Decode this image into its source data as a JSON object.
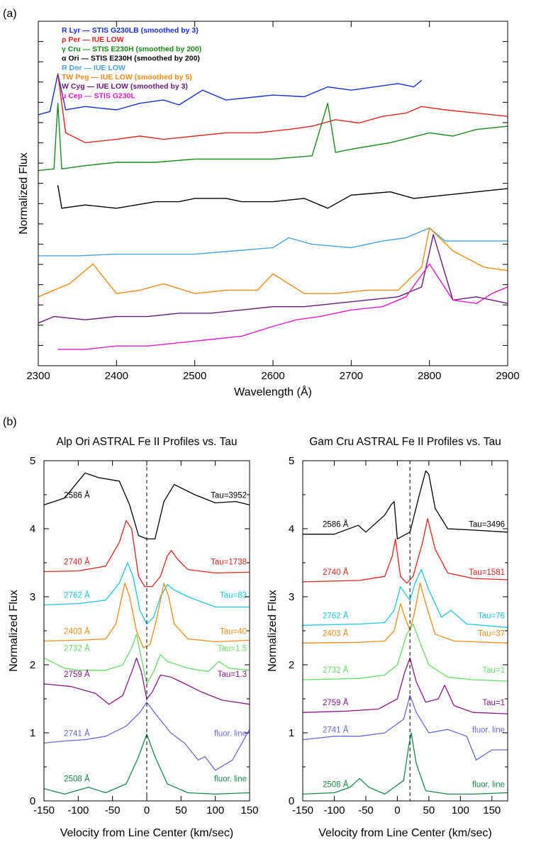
{
  "panel_labels": {
    "a": "(a)",
    "b": "(b)"
  },
  "chart_data": [
    {
      "type": "line",
      "xlabel": "Wavelength (Å)",
      "ylabel": "Normalized Flux",
      "xlim": [
        2300,
        2900
      ],
      "xticks": [
        2300,
        2400,
        2500,
        2600,
        2700,
        2800,
        2900
      ],
      "y_tick_labels": false,
      "legend_position": "top-left",
      "series": [
        {
          "name": "R Lyr",
          "legend_text": "R Lyr — STIS G230LB (smoothed by 3)",
          "color": "#1730d8",
          "x": [
            2300,
            2315,
            2325,
            2335,
            2360,
            2400,
            2430,
            2460,
            2480,
            2510,
            2540,
            2580,
            2600,
            2640,
            2670,
            2700,
            2730,
            2760,
            2780,
            2790
          ],
          "y": [
            0.715,
            0.725,
            0.84,
            0.73,
            0.74,
            0.73,
            0.75,
            0.76,
            0.745,
            0.79,
            0.76,
            0.77,
            0.775,
            0.77,
            0.8,
            0.79,
            0.8,
            0.81,
            0.8,
            0.82
          ]
        },
        {
          "name": "ρ Per",
          "legend_text": "ρ Per — IUE LOW",
          "color": "#e0261d",
          "x": [
            2325,
            2335,
            2360,
            2400,
            2430,
            2460,
            2500,
            2540,
            2580,
            2620,
            2650,
            2680,
            2710,
            2740,
            2770,
            2790,
            2820,
            2860,
            2900
          ],
          "y": [
            0.84,
            0.66,
            0.63,
            0.64,
            0.65,
            0.64,
            0.65,
            0.66,
            0.66,
            0.67,
            0.68,
            0.7,
            0.69,
            0.71,
            0.72,
            0.74,
            0.73,
            0.72,
            0.71
          ]
        },
        {
          "name": "γ Cru",
          "legend_text": "γ Cru — STIS E230H (smoothed by 200)",
          "color": "#1a8a1a",
          "x": [
            2300,
            2320,
            2325,
            2330,
            2360,
            2400,
            2450,
            2500,
            2550,
            2600,
            2650,
            2670,
            2680,
            2700,
            2750,
            2800,
            2830,
            2860,
            2900
          ],
          "y": [
            0.545,
            0.55,
            0.75,
            0.55,
            0.56,
            0.57,
            0.57,
            0.58,
            0.58,
            0.58,
            0.59,
            0.75,
            0.6,
            0.61,
            0.63,
            0.66,
            0.65,
            0.67,
            0.68
          ]
        },
        {
          "name": "α Ori",
          "legend_text": "α Ori — STIS E230H (smoothed by 200)",
          "color": "#000000",
          "x": [
            2325,
            2330,
            2360,
            2400,
            2450,
            2480,
            2500,
            2540,
            2560,
            2600,
            2640,
            2670,
            2700,
            2750,
            2780,
            2820,
            2860,
            2900
          ],
          "y": [
            0.5,
            0.43,
            0.44,
            0.43,
            0.45,
            0.45,
            0.46,
            0.46,
            0.45,
            0.45,
            0.46,
            0.43,
            0.47,
            0.48,
            0.46,
            0.47,
            0.48,
            0.49
          ]
        },
        {
          "name": "R Dor",
          "legend_text": "R Dor — IUE LOW",
          "color": "#4aa3e0",
          "x": [
            2300,
            2350,
            2400,
            2450,
            2500,
            2550,
            2600,
            2620,
            2650,
            2700,
            2740,
            2770,
            2800,
            2820,
            2860,
            2900
          ],
          "y": [
            0.285,
            0.285,
            0.29,
            0.29,
            0.29,
            0.3,
            0.31,
            0.34,
            0.32,
            0.31,
            0.33,
            0.34,
            0.37,
            0.33,
            0.33,
            0.33
          ]
        },
        {
          "name": "TW Peg",
          "legend_text": "TW Peg — IUE LOW (smoothed by 5)",
          "color": "#f08c1a",
          "x": [
            2300,
            2340,
            2370,
            2400,
            2430,
            2460,
            2500,
            2540,
            2580,
            2600,
            2640,
            2680,
            2720,
            2760,
            2790,
            2800,
            2830,
            2870,
            2900
          ],
          "y": [
            0.16,
            0.2,
            0.26,
            0.17,
            0.18,
            0.2,
            0.17,
            0.18,
            0.18,
            0.23,
            0.17,
            0.17,
            0.18,
            0.18,
            0.25,
            0.37,
            0.3,
            0.25,
            0.24
          ]
        },
        {
          "name": "W Cyg",
          "legend_text": "W Cyg — IUE LOW (smoothed by 3)",
          "color": "#6a1a7a",
          "x": [
            2300,
            2320,
            2360,
            2400,
            2440,
            2480,
            2520,
            2560,
            2600,
            2640,
            2680,
            2720,
            2760,
            2790,
            2805,
            2830,
            2860,
            2900
          ],
          "y": [
            0.08,
            0.1,
            0.09,
            0.1,
            0.1,
            0.11,
            0.11,
            0.12,
            0.13,
            0.13,
            0.14,
            0.15,
            0.16,
            0.19,
            0.35,
            0.15,
            0.16,
            0.14
          ]
        },
        {
          "name": "μ Cep",
          "legend_text": "μ Cep — STIS G230L",
          "color": "#e21bd0",
          "x": [
            2325,
            2360,
            2400,
            2440,
            2480,
            2520,
            2560,
            2600,
            2630,
            2660,
            2700,
            2740,
            2770,
            2800,
            2830,
            2860,
            2880,
            2900
          ],
          "y": [
            0.0,
            0.0,
            0.01,
            0.01,
            0.02,
            0.03,
            0.04,
            0.07,
            0.09,
            0.1,
            0.12,
            0.13,
            0.16,
            0.26,
            0.15,
            0.14,
            0.17,
            0.19
          ]
        }
      ]
    },
    {
      "type": "line",
      "title": "Alp Ori ASTRAL Fe II Profiles vs. Tau",
      "xlabel": "Velocity from Line Center (km/sec)",
      "ylabel": "Normalized Flux",
      "xlim": [
        -150,
        150
      ],
      "ylim": [
        0,
        5
      ],
      "xticks": [
        -150,
        -100,
        -50,
        0,
        50,
        100,
        150
      ],
      "yticks": [
        0,
        1,
        2,
        3,
        4,
        5
      ],
      "vline": 0,
      "series": [
        {
          "label": "2586 Å",
          "tau_label": "Tau=3952",
          "color": "#000000",
          "x": [
            -150,
            -120,
            -90,
            -70,
            -40,
            -25,
            -12,
            0,
            12,
            25,
            40,
            70,
            100,
            130,
            150
          ],
          "y": [
            4.35,
            4.45,
            4.82,
            4.75,
            4.7,
            4.35,
            3.9,
            3.85,
            3.85,
            4.4,
            4.65,
            4.5,
            4.38,
            4.4,
            4.35
          ]
        },
        {
          "label": "2740 Å",
          "tau_label": "Tau=1738",
          "color": "#e0261d",
          "x": [
            -150,
            -100,
            -60,
            -40,
            -30,
            -22,
            -12,
            -3,
            8,
            20,
            30,
            36,
            45,
            60,
            100,
            150
          ],
          "y": [
            3.37,
            3.38,
            3.45,
            3.8,
            4.12,
            4.0,
            3.3,
            3.15,
            3.15,
            3.3,
            3.6,
            3.68,
            3.55,
            3.4,
            3.35,
            3.36
          ]
        },
        {
          "label": "2762 Å",
          "tau_label": "Tau=83",
          "color": "#1ec8e6",
          "x": [
            -150,
            -100,
            -60,
            -40,
            -28,
            -20,
            -10,
            0,
            10,
            20,
            30,
            40,
            60,
            100,
            150
          ],
          "y": [
            2.88,
            2.9,
            2.95,
            3.2,
            3.5,
            3.3,
            2.8,
            2.6,
            2.7,
            3.0,
            3.18,
            3.1,
            3.0,
            2.85,
            2.85
          ]
        },
        {
          "label": "2403 Å",
          "tau_label": "Tau=40",
          "color": "#f08c1a",
          "x": [
            -150,
            -100,
            -60,
            -45,
            -32,
            -25,
            -15,
            -5,
            5,
            15,
            25,
            32,
            40,
            60,
            100,
            150
          ],
          "y": [
            2.35,
            2.36,
            2.38,
            2.6,
            3.2,
            3.0,
            2.5,
            2.25,
            2.3,
            2.7,
            3.2,
            3.0,
            2.6,
            2.38,
            2.34,
            2.36
          ]
        },
        {
          "label": "2732 Å",
          "tau_label": "Tau=1.5",
          "color": "#66e066",
          "x": [
            -150,
            -120,
            -100,
            -60,
            -35,
            -22,
            -15,
            -8,
            0,
            10,
            20,
            30,
            60,
            90,
            105,
            120,
            150
          ],
          "y": [
            2.1,
            1.95,
            1.92,
            1.92,
            2.0,
            2.25,
            2.45,
            2.1,
            1.72,
            1.9,
            2.15,
            2.05,
            1.95,
            1.9,
            2.05,
            1.95,
            1.92
          ]
        },
        {
          "label": "2759 Å",
          "tau_label": "Tau=1.3",
          "color": "#8a1a8a",
          "x": [
            -150,
            -110,
            -75,
            -55,
            -35,
            -20,
            -15,
            -8,
            0,
            8,
            20,
            35,
            50,
            80,
            110,
            150
          ],
          "y": [
            1.72,
            1.68,
            1.58,
            1.42,
            1.55,
            1.95,
            2.1,
            1.9,
            1.5,
            1.6,
            1.85,
            1.82,
            1.75,
            1.6,
            1.48,
            1.42
          ]
        },
        {
          "label": "2741 Å",
          "tau_label": "fluor. line",
          "color": "#6a6adc",
          "x": [
            -150,
            -120,
            -90,
            -60,
            -30,
            -10,
            0,
            15,
            35,
            55,
            75,
            85,
            100,
            125,
            150
          ],
          "y": [
            0.85,
            0.88,
            0.9,
            0.95,
            1.1,
            1.3,
            1.45,
            1.25,
            1.0,
            0.85,
            0.6,
            0.65,
            0.45,
            0.6,
            1.05
          ]
        },
        {
          "label": "2508 Å",
          "tau_label": "fluor. line",
          "color": "#1a8a4a",
          "x": [
            -150,
            -120,
            -85,
            -60,
            -30,
            -12,
            0,
            12,
            30,
            60,
            100,
            150
          ],
          "y": [
            0.18,
            0.1,
            0.2,
            0.12,
            0.25,
            0.65,
            0.98,
            0.65,
            0.25,
            0.12,
            0.1,
            0.12
          ]
        }
      ]
    },
    {
      "type": "line",
      "title": "Gam Cru ASTRAL Fe II Profiles vs. Tau",
      "xlabel": "Velocity from Line Center (km/sec)",
      "ylabel": "Normalized Flux",
      "xlim": [
        -150,
        175
      ],
      "ylim": [
        0,
        5
      ],
      "xticks": [
        -150,
        -100,
        -50,
        0,
        50,
        100,
        150
      ],
      "yticks": [
        0,
        1,
        2,
        3,
        4,
        5
      ],
      "vline": 20,
      "series": [
        {
          "label": "2586 Å",
          "tau_label": "Tau=3496",
          "color": "#000000",
          "x": [
            -150,
            -100,
            -62,
            -50,
            -20,
            -10,
            -5,
            0,
            10,
            20,
            35,
            45,
            50,
            60,
            80,
            120,
            175
          ],
          "y": [
            3.92,
            3.92,
            4.05,
            3.95,
            4.2,
            4.35,
            4.4,
            3.85,
            3.9,
            3.95,
            4.5,
            4.85,
            4.8,
            4.3,
            4.0,
            3.98,
            3.95
          ]
        },
        {
          "label": "2740 Å",
          "tau_label": "Tau=1581",
          "color": "#e0261d",
          "x": [
            -150,
            -60,
            -20,
            -8,
            -3,
            5,
            15,
            25,
            40,
            48,
            60,
            80,
            120,
            175
          ],
          "y": [
            3.22,
            3.24,
            3.3,
            3.6,
            3.85,
            3.3,
            3.2,
            3.3,
            3.8,
            4.15,
            3.7,
            3.35,
            3.27,
            3.25
          ]
        },
        {
          "label": "2762 Å",
          "tau_label": "Tau=76",
          "color": "#1ec8e6",
          "x": [
            -150,
            -60,
            -20,
            -5,
            5,
            12,
            20,
            28,
            38,
            50,
            70,
            85,
            110,
            175
          ],
          "y": [
            2.58,
            2.6,
            2.62,
            2.8,
            3.15,
            3.05,
            2.95,
            3.2,
            3.4,
            3.1,
            2.7,
            2.8,
            2.6,
            2.55
          ]
        },
        {
          "label": "2403 Å",
          "tau_label": "Tau=37",
          "color": "#f08c1a",
          "x": [
            -150,
            -60,
            -20,
            -5,
            5,
            12,
            20,
            28,
            36,
            45,
            60,
            90,
            175
          ],
          "y": [
            2.32,
            2.33,
            2.35,
            2.5,
            2.9,
            2.7,
            2.5,
            2.8,
            3.2,
            2.9,
            2.45,
            2.35,
            2.32
          ]
        },
        {
          "label": "2732 Å",
          "tau_label": "Tau=1",
          "color": "#66e066",
          "x": [
            -150,
            -60,
            -20,
            0,
            15,
            25,
            35,
            50,
            80,
            120,
            175
          ],
          "y": [
            1.78,
            1.8,
            1.85,
            2.0,
            2.45,
            2.6,
            2.35,
            2.0,
            1.82,
            1.78,
            1.76
          ]
        },
        {
          "label": "2759 Å",
          "tau_label": "Tau=1",
          "color": "#8a1a8a",
          "x": [
            -150,
            -80,
            -30,
            0,
            12,
            20,
            30,
            45,
            65,
            75,
            90,
            120,
            175
          ],
          "y": [
            1.3,
            1.32,
            1.35,
            1.5,
            1.9,
            2.1,
            1.75,
            1.45,
            1.5,
            1.7,
            1.4,
            1.3,
            1.28
          ]
        },
        {
          "label": "2741 Å",
          "tau_label": "fluor. line",
          "color": "#6a6adc",
          "x": [
            -150,
            -100,
            -60,
            -20,
            10,
            20,
            30,
            50,
            80,
            110,
            125,
            150,
            175
          ],
          "y": [
            0.9,
            0.95,
            0.95,
            1.0,
            1.2,
            1.55,
            1.3,
            1.0,
            1.05,
            0.95,
            0.6,
            0.75,
            0.75
          ]
        },
        {
          "label": "2508 Å",
          "tau_label": "fluor. line",
          "color": "#1a8a4a",
          "x": [
            -150,
            -100,
            -75,
            -60,
            -45,
            -20,
            10,
            18,
            22,
            30,
            45,
            80,
            120,
            175
          ],
          "y": [
            0.1,
            0.12,
            0.2,
            0.33,
            0.2,
            0.1,
            0.3,
            0.8,
            1.0,
            0.55,
            0.15,
            0.1,
            0.1,
            0.12
          ]
        }
      ]
    }
  ]
}
